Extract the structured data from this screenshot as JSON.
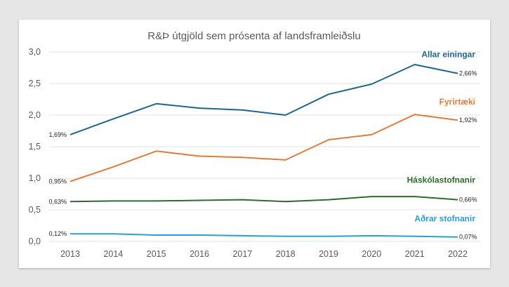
{
  "chart_data": {
    "type": "line",
    "title": "R&Þ útgjöld sem prósenta af landsframleiðslu",
    "xlabel": "",
    "ylabel": "",
    "x": [
      "2013",
      "2014",
      "2015",
      "2016",
      "2017",
      "2018",
      "2019",
      "2020",
      "2021",
      "2022"
    ],
    "ylim": [
      0,
      3.0
    ],
    "yticks": [
      "0,0",
      "0,5",
      "1,0",
      "1,5",
      "2,0",
      "2,5",
      "3,0"
    ],
    "ytick_values": [
      0,
      0.5,
      1.0,
      1.5,
      2.0,
      2.5,
      3.0
    ],
    "grid": true,
    "legend": "inline-right",
    "series": [
      {
        "name": "Allar einingar",
        "color": "#1f6688",
        "values": [
          1.69,
          1.94,
          2.18,
          2.11,
          2.08,
          2.0,
          2.33,
          2.49,
          2.8,
          2.66
        ],
        "start_label": "1,69%",
        "end_label": "2,66%"
      },
      {
        "name": "Fyrirtæki",
        "color": "#e07b3c",
        "values": [
          0.95,
          1.18,
          1.43,
          1.35,
          1.33,
          1.29,
          1.61,
          1.69,
          2.01,
          1.92
        ],
        "start_label": "0,95%",
        "end_label": "1,92%"
      },
      {
        "name": "Háskólastofnanir",
        "color": "#2e6b2e",
        "values": [
          0.63,
          0.64,
          0.64,
          0.65,
          0.66,
          0.63,
          0.66,
          0.71,
          0.71,
          0.66
        ],
        "start_label": "0,63%",
        "end_label": "0,66%"
      },
      {
        "name": "Aðrar stofnanir",
        "color": "#2a9fd0",
        "values": [
          0.12,
          0.12,
          0.1,
          0.1,
          0.09,
          0.08,
          0.08,
          0.09,
          0.08,
          0.07
        ],
        "start_label": "0,12%",
        "end_label": "0,07%"
      }
    ]
  }
}
